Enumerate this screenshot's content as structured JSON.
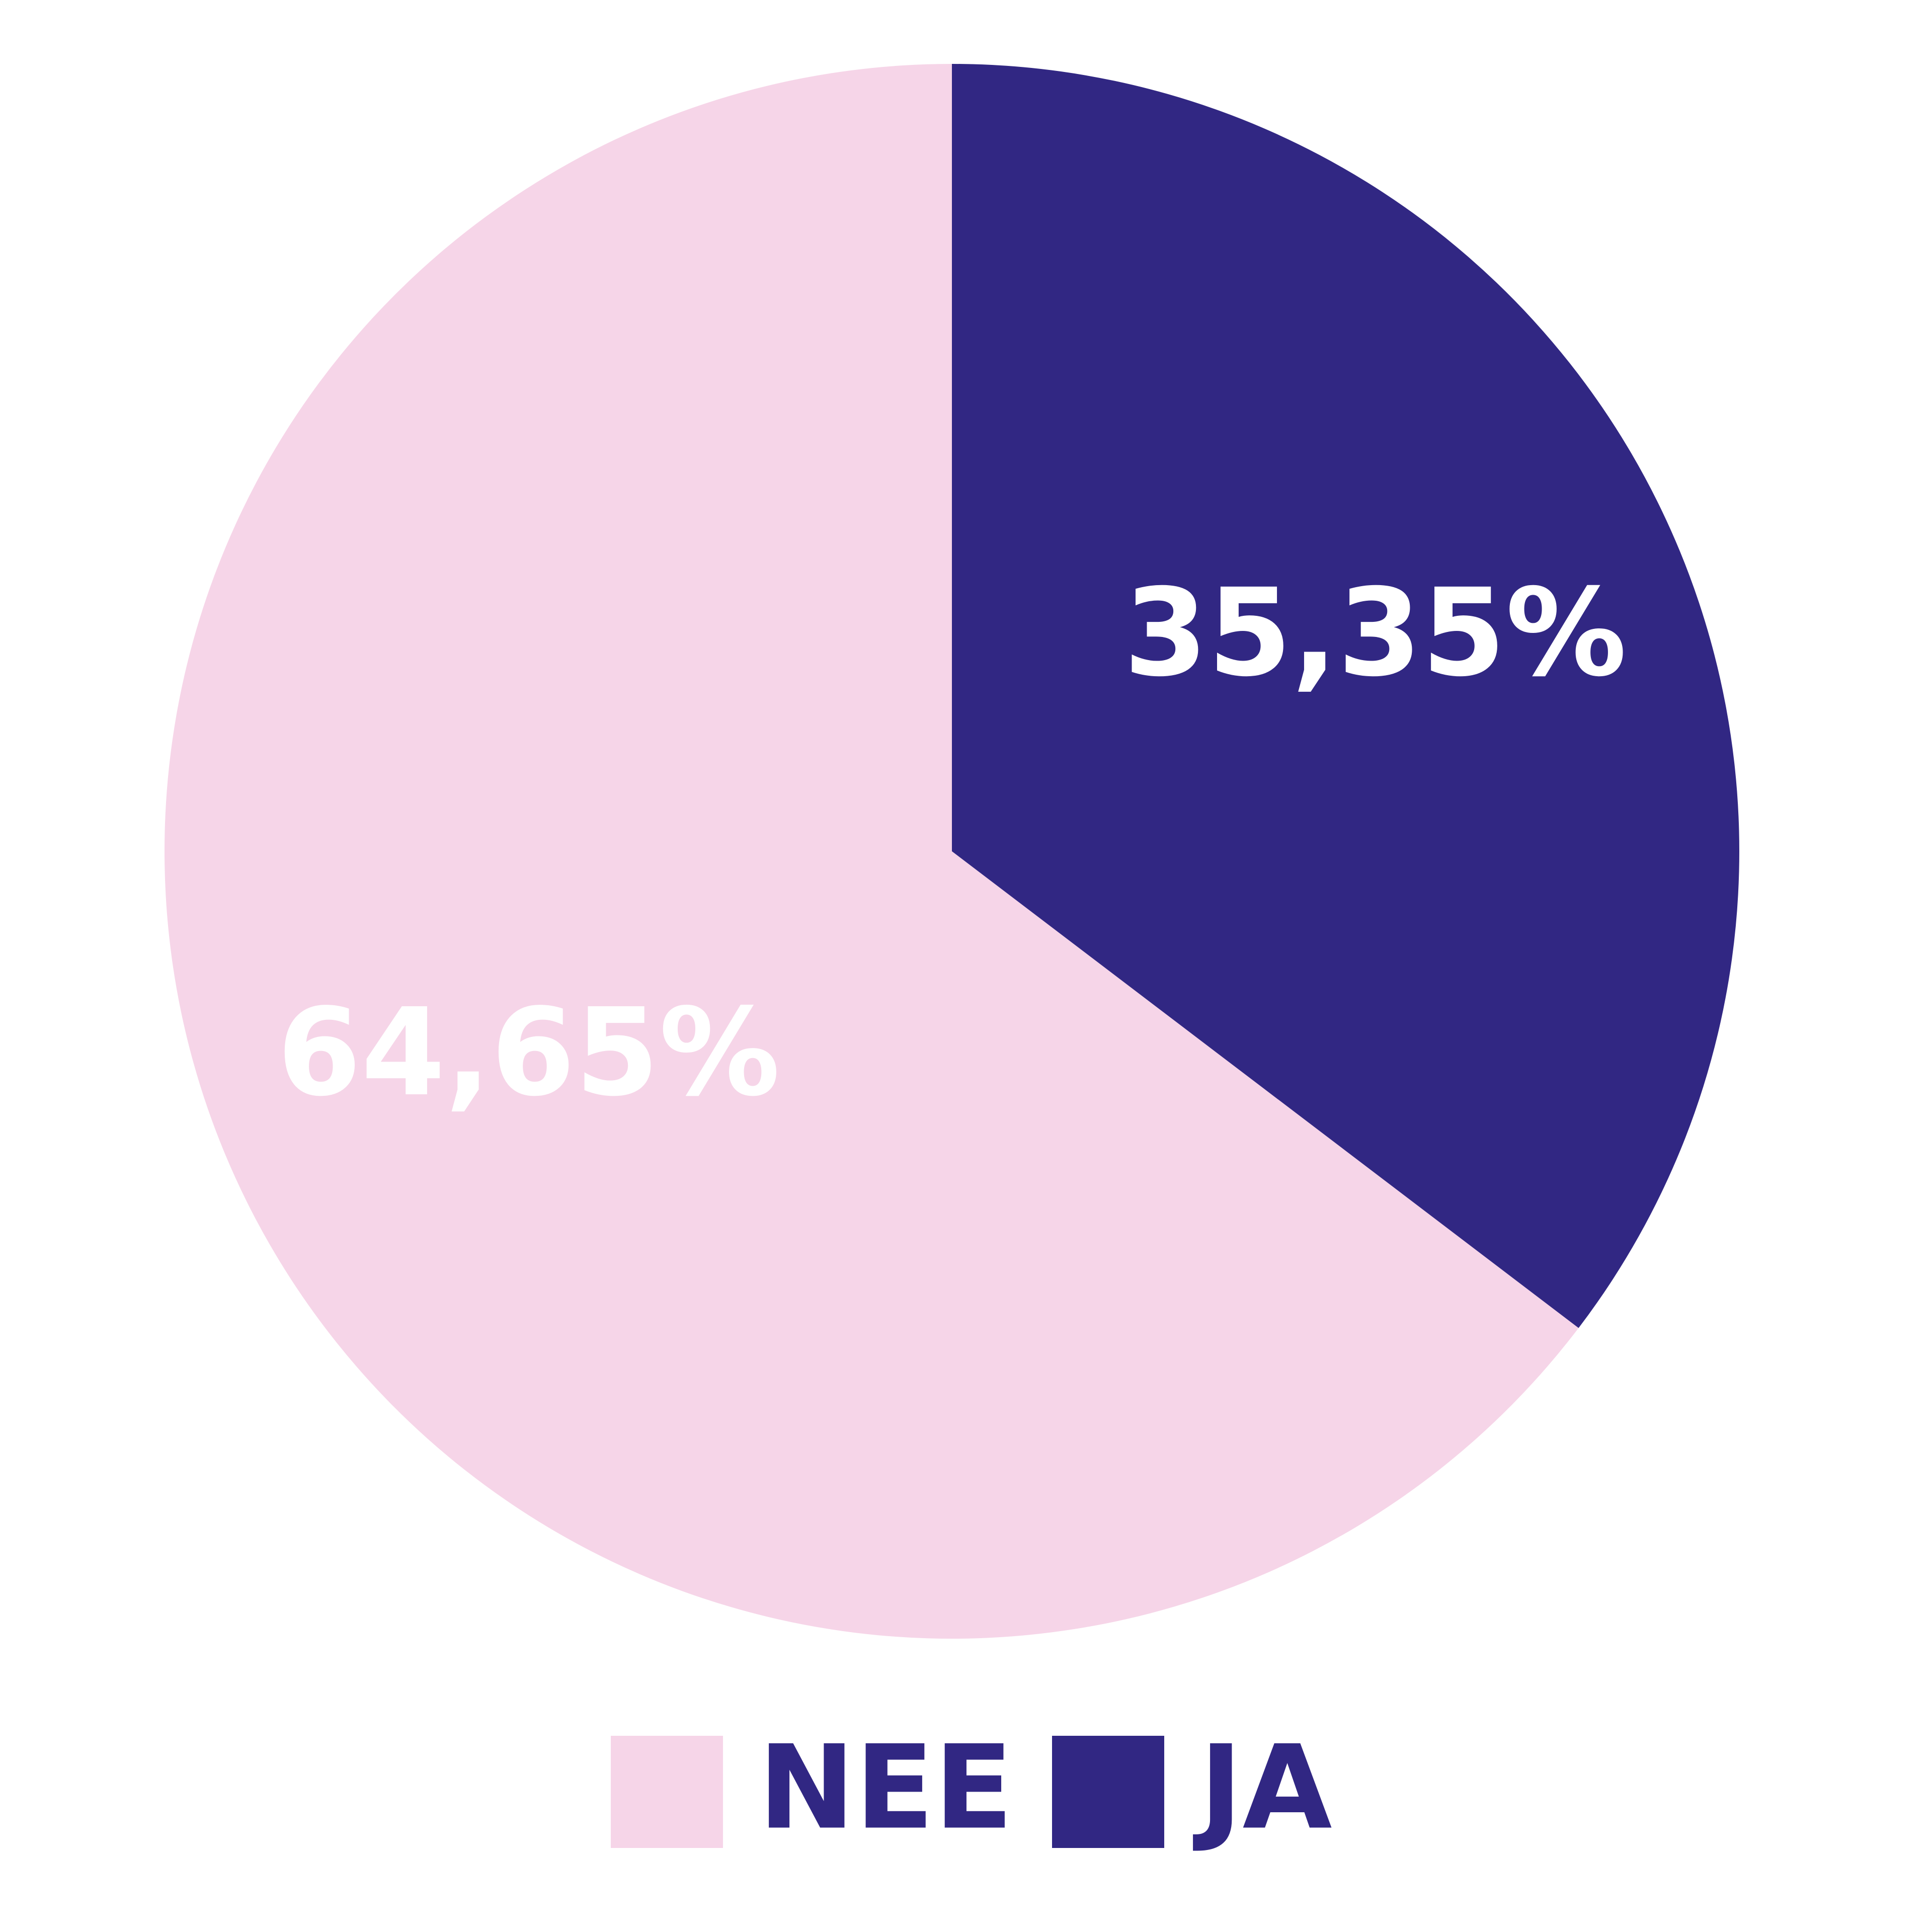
{
  "chart_data": {
    "type": "pie",
    "categories": [
      "NEE",
      "JA"
    ],
    "values": [
      64.65,
      35.35
    ],
    "value_labels": [
      "64,65%",
      "35,35%"
    ],
    "colors": [
      "#f6d5e8",
      "#312783"
    ],
    "legend": "bottom"
  }
}
